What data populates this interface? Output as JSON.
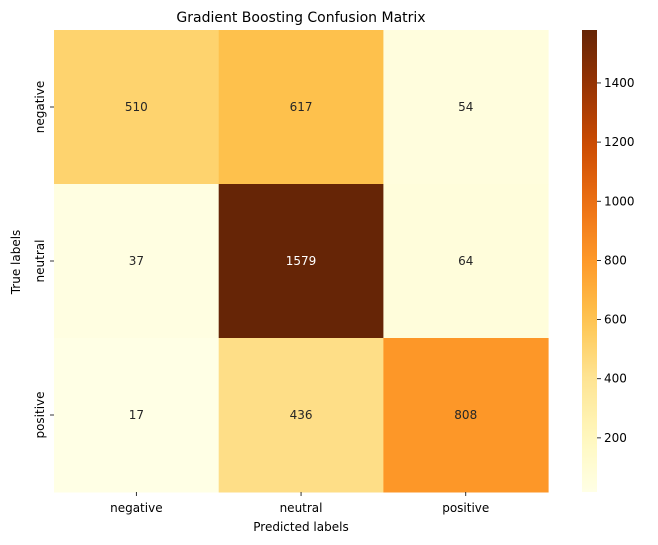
{
  "chart_data": {
    "type": "heatmap",
    "title": "Gradient Boosting Confusion Matrix",
    "xlabel": "Predicted labels",
    "ylabel": "True labels",
    "x_categories": [
      "negative",
      "neutral",
      "positive"
    ],
    "y_categories": [
      "negative",
      "neutral",
      "positive"
    ],
    "values": [
      [
        510,
        617,
        54
      ],
      [
        37,
        1579,
        64
      ],
      [
        17,
        436,
        808
      ]
    ],
    "colormap": "YlOrBr",
    "vmin": 17,
    "vmax": 1579,
    "colorbar_ticks": [
      200,
      400,
      600,
      800,
      1000,
      1200,
      1400
    ],
    "legend": "colorbar-right"
  }
}
